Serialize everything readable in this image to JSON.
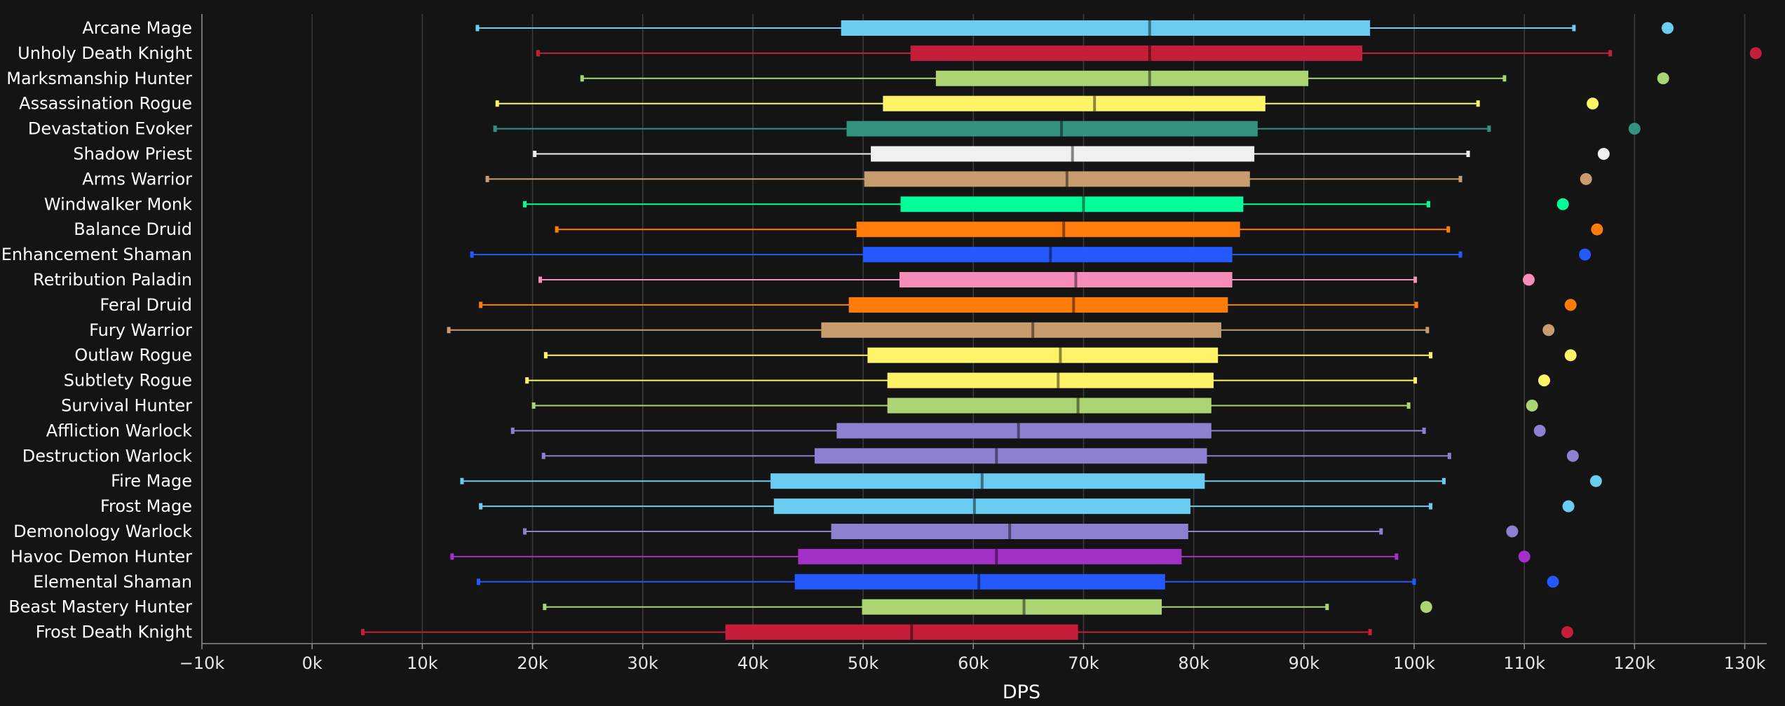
{
  "chart_data": {
    "type": "box",
    "title": "",
    "xlabel": "DPS",
    "ylabel": "",
    "xlim": [
      -10000,
      132000
    ],
    "xticks": [
      -10000,
      0,
      10000,
      20000,
      30000,
      40000,
      50000,
      60000,
      70000,
      80000,
      90000,
      100000,
      110000,
      120000,
      130000
    ],
    "xtick_labels": [
      "−10k",
      "0k",
      "10k",
      "20k",
      "30k",
      "40k",
      "50k",
      "60k",
      "70k",
      "80k",
      "90k",
      "100k",
      "110k",
      "120k",
      "130k"
    ],
    "grid": true,
    "orientation": "horizontal",
    "series": [
      {
        "label": "Arcane Mage",
        "color": "#69ccf0",
        "min": 15000,
        "q1": 48000,
        "median": 76000,
        "q3": 96000,
        "max": 114500,
        "outlier": 123000
      },
      {
        "label": "Unholy Death Knight",
        "color": "#c41e3a",
        "min": 20500,
        "q1": 54300,
        "median": 76000,
        "q3": 95300,
        "max": 117800,
        "outlier": 131000
      },
      {
        "label": "Marksmanship Hunter",
        "color": "#abd473",
        "min": 24500,
        "q1": 56600,
        "median": 76000,
        "q3": 90400,
        "max": 108200,
        "outlier": 122600
      },
      {
        "label": "Assassination Rogue",
        "color": "#fff468",
        "min": 16800,
        "q1": 51800,
        "median": 71000,
        "q3": 86500,
        "max": 105800,
        "outlier": 116200
      },
      {
        "label": "Devastation Evoker",
        "color": "#33937f",
        "min": 16600,
        "q1": 48500,
        "median": 68000,
        "q3": 85800,
        "max": 106800,
        "outlier": 120000
      },
      {
        "label": "Shadow Priest",
        "color": "#f0f0f0",
        "min": 20200,
        "q1": 50700,
        "median": 69000,
        "q3": 85500,
        "max": 104900,
        "outlier": 117200
      },
      {
        "label": "Arms Warrior",
        "color": "#c79c6e",
        "min": 15900,
        "q1": 50100,
        "median": 68500,
        "q3": 85100,
        "max": 104200,
        "outlier": 115600
      },
      {
        "label": "Windwalker Monk",
        "color": "#00ff98",
        "min": 19300,
        "q1": 53400,
        "median": 70000,
        "q3": 84500,
        "max": 101300,
        "outlier": 113500
      },
      {
        "label": "Balance Druid",
        "color": "#ff7c0a",
        "min": 22200,
        "q1": 49400,
        "median": 68200,
        "q3": 84200,
        "max": 103100,
        "outlier": 116600
      },
      {
        "label": "Enhancement Shaman",
        "color": "#2459ff",
        "min": 14500,
        "q1": 50000,
        "median": 67000,
        "q3": 83500,
        "max": 104200,
        "outlier": 115500
      },
      {
        "label": "Retribution Paladin",
        "color": "#f58cba",
        "min": 20700,
        "q1": 53300,
        "median": 69300,
        "q3": 83500,
        "max": 100100,
        "outlier": 110400
      },
      {
        "label": "Feral Druid",
        "color": "#ff7c0a",
        "min": 15300,
        "q1": 48700,
        "median": 69100,
        "q3": 83100,
        "max": 100200,
        "outlier": 114200
      },
      {
        "label": "Fury Warrior",
        "color": "#c79c6e",
        "min": 12400,
        "q1": 46200,
        "median": 65400,
        "q3": 82500,
        "max": 101200,
        "outlier": 112200
      },
      {
        "label": "Outlaw Rogue",
        "color": "#fff468",
        "min": 21200,
        "q1": 50400,
        "median": 67900,
        "q3": 82200,
        "max": 101500,
        "outlier": 114200
      },
      {
        "label": "Subtlety Rogue",
        "color": "#fff468",
        "min": 19500,
        "q1": 52200,
        "median": 67700,
        "q3": 81800,
        "max": 100100,
        "outlier": 111800
      },
      {
        "label": "Survival Hunter",
        "color": "#abd473",
        "min": 20100,
        "q1": 52200,
        "median": 69500,
        "q3": 81600,
        "max": 99500,
        "outlier": 110700
      },
      {
        "label": "Affliction Warlock",
        "color": "#8f7fd0",
        "min": 18200,
        "q1": 47600,
        "median": 64100,
        "q3": 81600,
        "max": 100900,
        "outlier": 111400
      },
      {
        "label": "Destruction Warlock",
        "color": "#8f7fd0",
        "min": 21000,
        "q1": 45600,
        "median": 62100,
        "q3": 81200,
        "max": 103200,
        "outlier": 114400
      },
      {
        "label": "Fire Mage",
        "color": "#69ccf0",
        "min": 13600,
        "q1": 41600,
        "median": 60800,
        "q3": 81000,
        "max": 102700,
        "outlier": 116500
      },
      {
        "label": "Frost Mage",
        "color": "#69ccf0",
        "min": 15300,
        "q1": 41900,
        "median": 60100,
        "q3": 79700,
        "max": 101500,
        "outlier": 114000
      },
      {
        "label": "Demonology Warlock",
        "color": "#8f7fd0",
        "min": 19300,
        "q1": 47100,
        "median": 63300,
        "q3": 79500,
        "max": 97000,
        "outlier": 108900
      },
      {
        "label": "Havoc Demon Hunter",
        "color": "#a330c9",
        "min": 12700,
        "q1": 44100,
        "median": 62100,
        "q3": 78900,
        "max": 98400,
        "outlier": 110000
      },
      {
        "label": "Elemental Shaman",
        "color": "#2459ff",
        "min": 15100,
        "q1": 43800,
        "median": 60500,
        "q3": 77400,
        "max": 100000,
        "outlier": 112600
      },
      {
        "label": "Beast Mastery Hunter",
        "color": "#abd473",
        "min": 21100,
        "q1": 49900,
        "median": 64600,
        "q3": 77100,
        "max": 92100,
        "outlier": 101100
      },
      {
        "label": "Frost Death Knight",
        "color": "#c41e3a",
        "min": 4600,
        "q1": 37500,
        "median": 54400,
        "q3": 69500,
        "max": 96000,
        "outlier": 113900
      }
    ]
  }
}
